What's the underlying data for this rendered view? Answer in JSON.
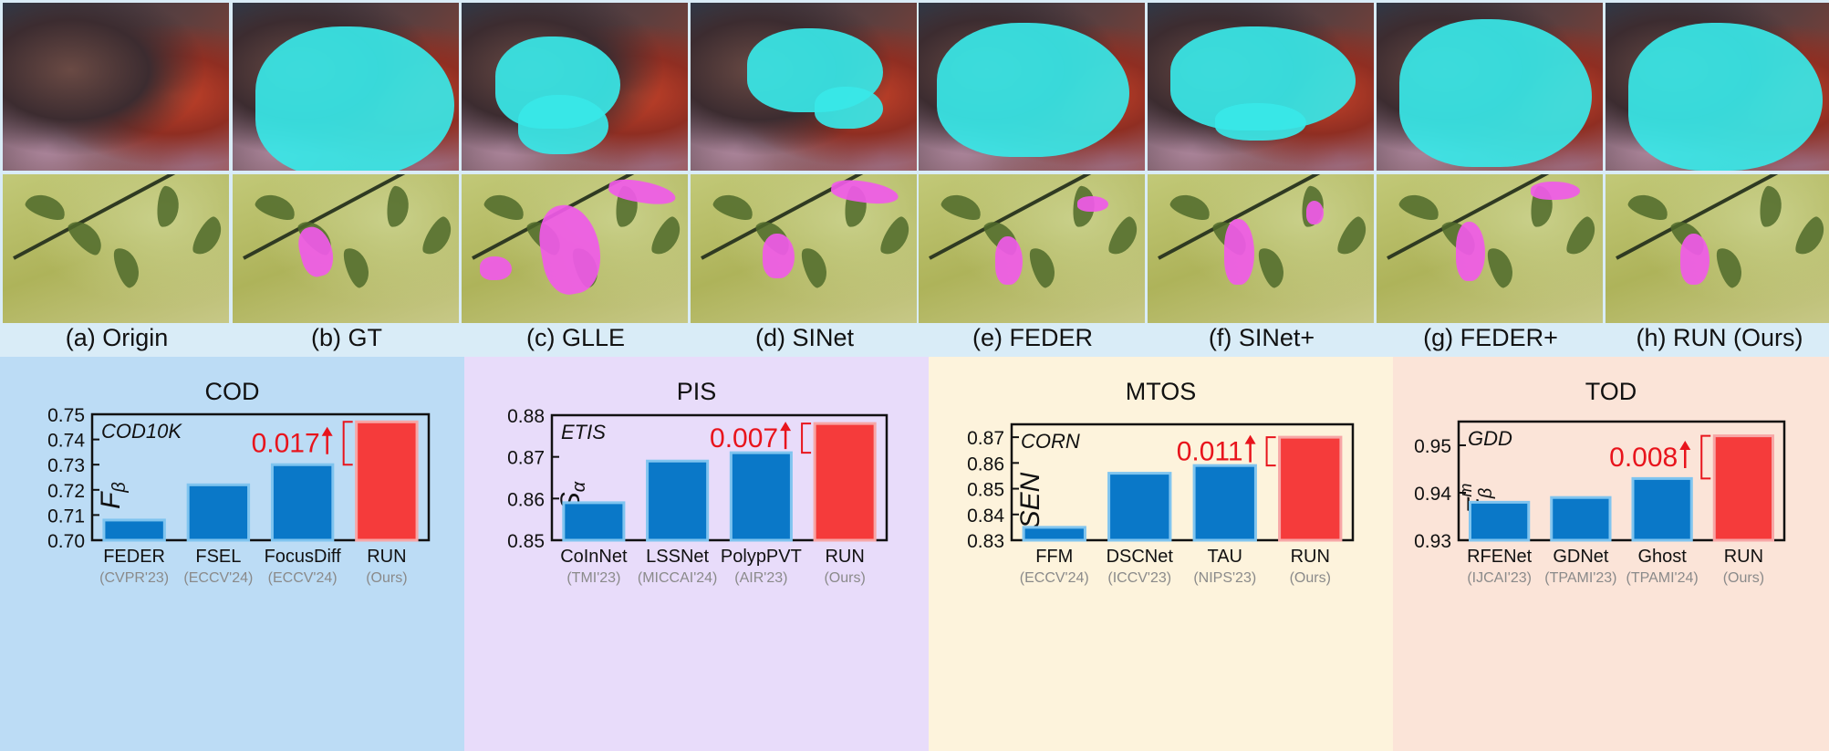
{
  "captions": [
    "(a) Origin",
    "(b) GT",
    "(c) GLLE",
    "(d) SINet",
    "(e) FEDER",
    "(f) SINet+",
    "(g) FEDER+",
    "(h) RUN (Ours)"
  ],
  "colors": {
    "baseline_bar": "#0a78c8",
    "baseline_edge": "#7fc4ef",
    "ours_bar": "#f53b3b",
    "ours_edge": "#f7a6a6",
    "annotation": "#e8141c",
    "mask_cod": "#38e8e8",
    "mask_leaf": "#f05ae8"
  },
  "chart_data": [
    {
      "type": "bar",
      "title": "COD",
      "dataset": "COD10K",
      "ylabel": "F_β",
      "ylim": [
        0.7,
        0.75
      ],
      "yticks": [
        "0.70",
        "0.71",
        "0.72",
        "0.73",
        "0.74",
        "0.75"
      ],
      "categories": [
        "FEDER",
        "FSEL",
        "FocusDiff",
        "RUN"
      ],
      "venues": [
        "(CVPR'23)",
        "(ECCV'24)",
        "(ECCV'24)",
        "(Ours)"
      ],
      "values": [
        0.708,
        0.722,
        0.73,
        0.747
      ],
      "highlight_index": 3,
      "annotation": "0.017",
      "background": "#bcdcf5"
    },
    {
      "type": "bar",
      "title": "PIS",
      "dataset": "ETIS",
      "ylabel": "S_α",
      "ylim": [
        0.85,
        0.88
      ],
      "yticks": [
        "0.85",
        "0.86",
        "0.87",
        "0.88"
      ],
      "categories": [
        "CoInNet",
        "LSSNet",
        "PolypPVT",
        "RUN"
      ],
      "venues": [
        "(TMI'23)",
        "(MICCAI'24)",
        "(AIR'23)",
        "(Ours)"
      ],
      "values": [
        0.859,
        0.869,
        0.871,
        0.878
      ],
      "highlight_index": 3,
      "annotation": "0.007",
      "background": "#e8dcfa"
    },
    {
      "type": "bar",
      "title": "MTOS",
      "dataset": "CORN",
      "ylabel": "SEN",
      "ylim": [
        0.83,
        0.875
      ],
      "yticks": [
        "0.83",
        "0.84",
        "0.85",
        "0.86",
        "0.87"
      ],
      "categories": [
        "FFM",
        "DSCNet",
        "TAU",
        "RUN"
      ],
      "venues": [
        "(ECCV'24)",
        "(ICCV'23)",
        "(NIPS'23)",
        "(Ours)"
      ],
      "values": [
        0.835,
        0.856,
        0.859,
        0.87
      ],
      "highlight_index": 3,
      "annotation": "0.011",
      "background": "#fdf3dc"
    },
    {
      "type": "bar",
      "title": "TOD",
      "dataset": "GDD",
      "ylabel": "F_β^m",
      "ylim": [
        0.93,
        0.955
      ],
      "yticks": [
        "0.93",
        "0.94",
        "0.95"
      ],
      "categories": [
        "RFENet",
        "GDNet",
        "Ghost",
        "RUN"
      ],
      "venues": [
        "(IJCAI'23)",
        "(TPAMI'23)",
        "(TPAMI'24)",
        "(Ours)"
      ],
      "values": [
        0.938,
        0.939,
        0.943,
        0.952
      ],
      "highlight_index": 3,
      "annotation": "0.008",
      "background": "#fbe4d8"
    }
  ]
}
